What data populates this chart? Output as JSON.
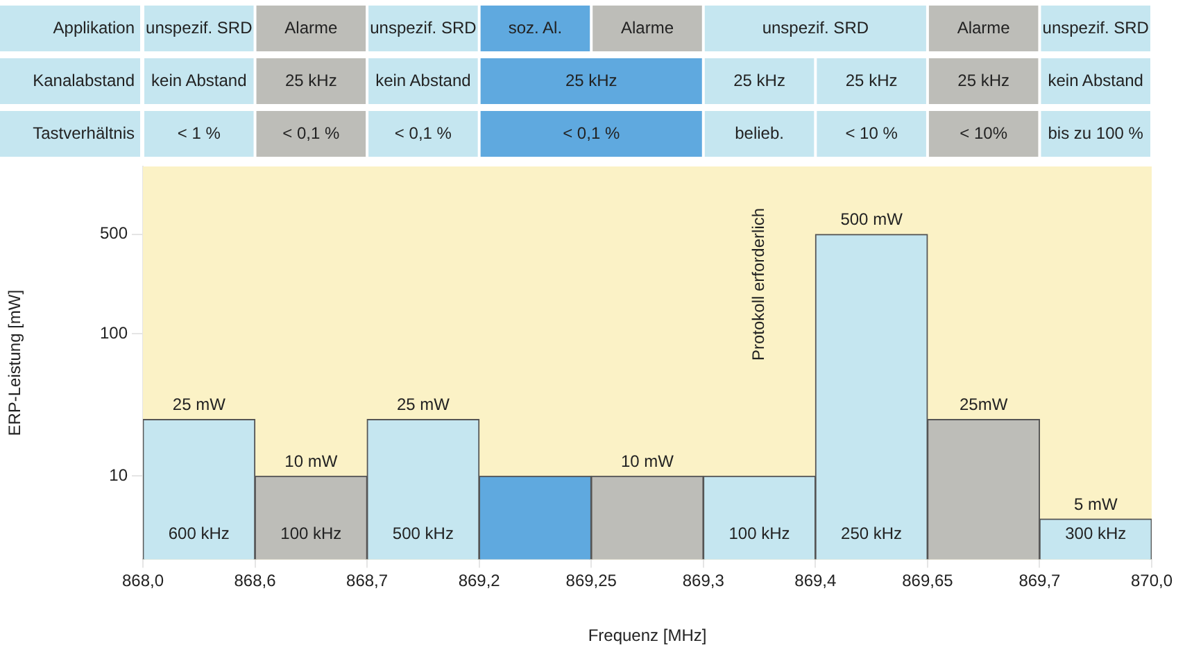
{
  "chart_data": {
    "type": "bar",
    "xlabel": "Frequenz [MHz]",
    "ylabel": "ERP-Leistung [mW]",
    "categories": [
      null,
      null,
      null,
      null,
      null,
      null,
      null,
      null,
      null
    ],
    "values": [
      25,
      10,
      25,
      10,
      10,
      10,
      500,
      25,
      5
    ],
    "colors": [
      "#c5e6f0",
      "#bdbdb8",
      "#c5e6f0",
      "#5fa9df",
      "#bdbdb8",
      "#c5e6f0",
      "#c5e6f0",
      "#bdbdb8",
      "#c5e6f0"
    ],
    "value_labels": [
      "25 mW",
      "10 mW",
      "25 mW",
      null,
      "10 mW",
      null,
      "500 mW",
      "25mW",
      "5 mW"
    ],
    "log": true,
    "ylim": [
      2.6,
      1500
    ],
    "yticks": [
      10,
      100,
      500
    ],
    "annotations": [
      "Applikation",
      "unspezif. SRD",
      "Alarme",
      "unspezif. SRD",
      "soz. Al.",
      "Alarme",
      "unspezif. SRD",
      "Alarme",
      "unspezif. SRD",
      "Kanalabstand",
      "kein Abstand",
      "25 kHz",
      "kein Abstand",
      "25 kHz",
      "25 kHz",
      "25 kHz",
      "25 kHz",
      "kein Abstand",
      "Tastverhältnis",
      "< 1 %",
      "< 0,1 %",
      "< 0,1 %",
      "< 0,1 %",
      "belieb.",
      "< 10 %",
      "< 10%",
      "bis zu 100 %",
      "868,0",
      "868,6",
      "868,7",
      "869,2",
      "869,25",
      "869,3",
      "869,4",
      "869,65",
      "869,7",
      "870,0",
      "600 kHz",
      "100 kHz",
      "500 kHz",
      "100 kHz",
      "250 kHz",
      "300 kHz",
      "Protokoll erforderlich"
    ]
  }
}
